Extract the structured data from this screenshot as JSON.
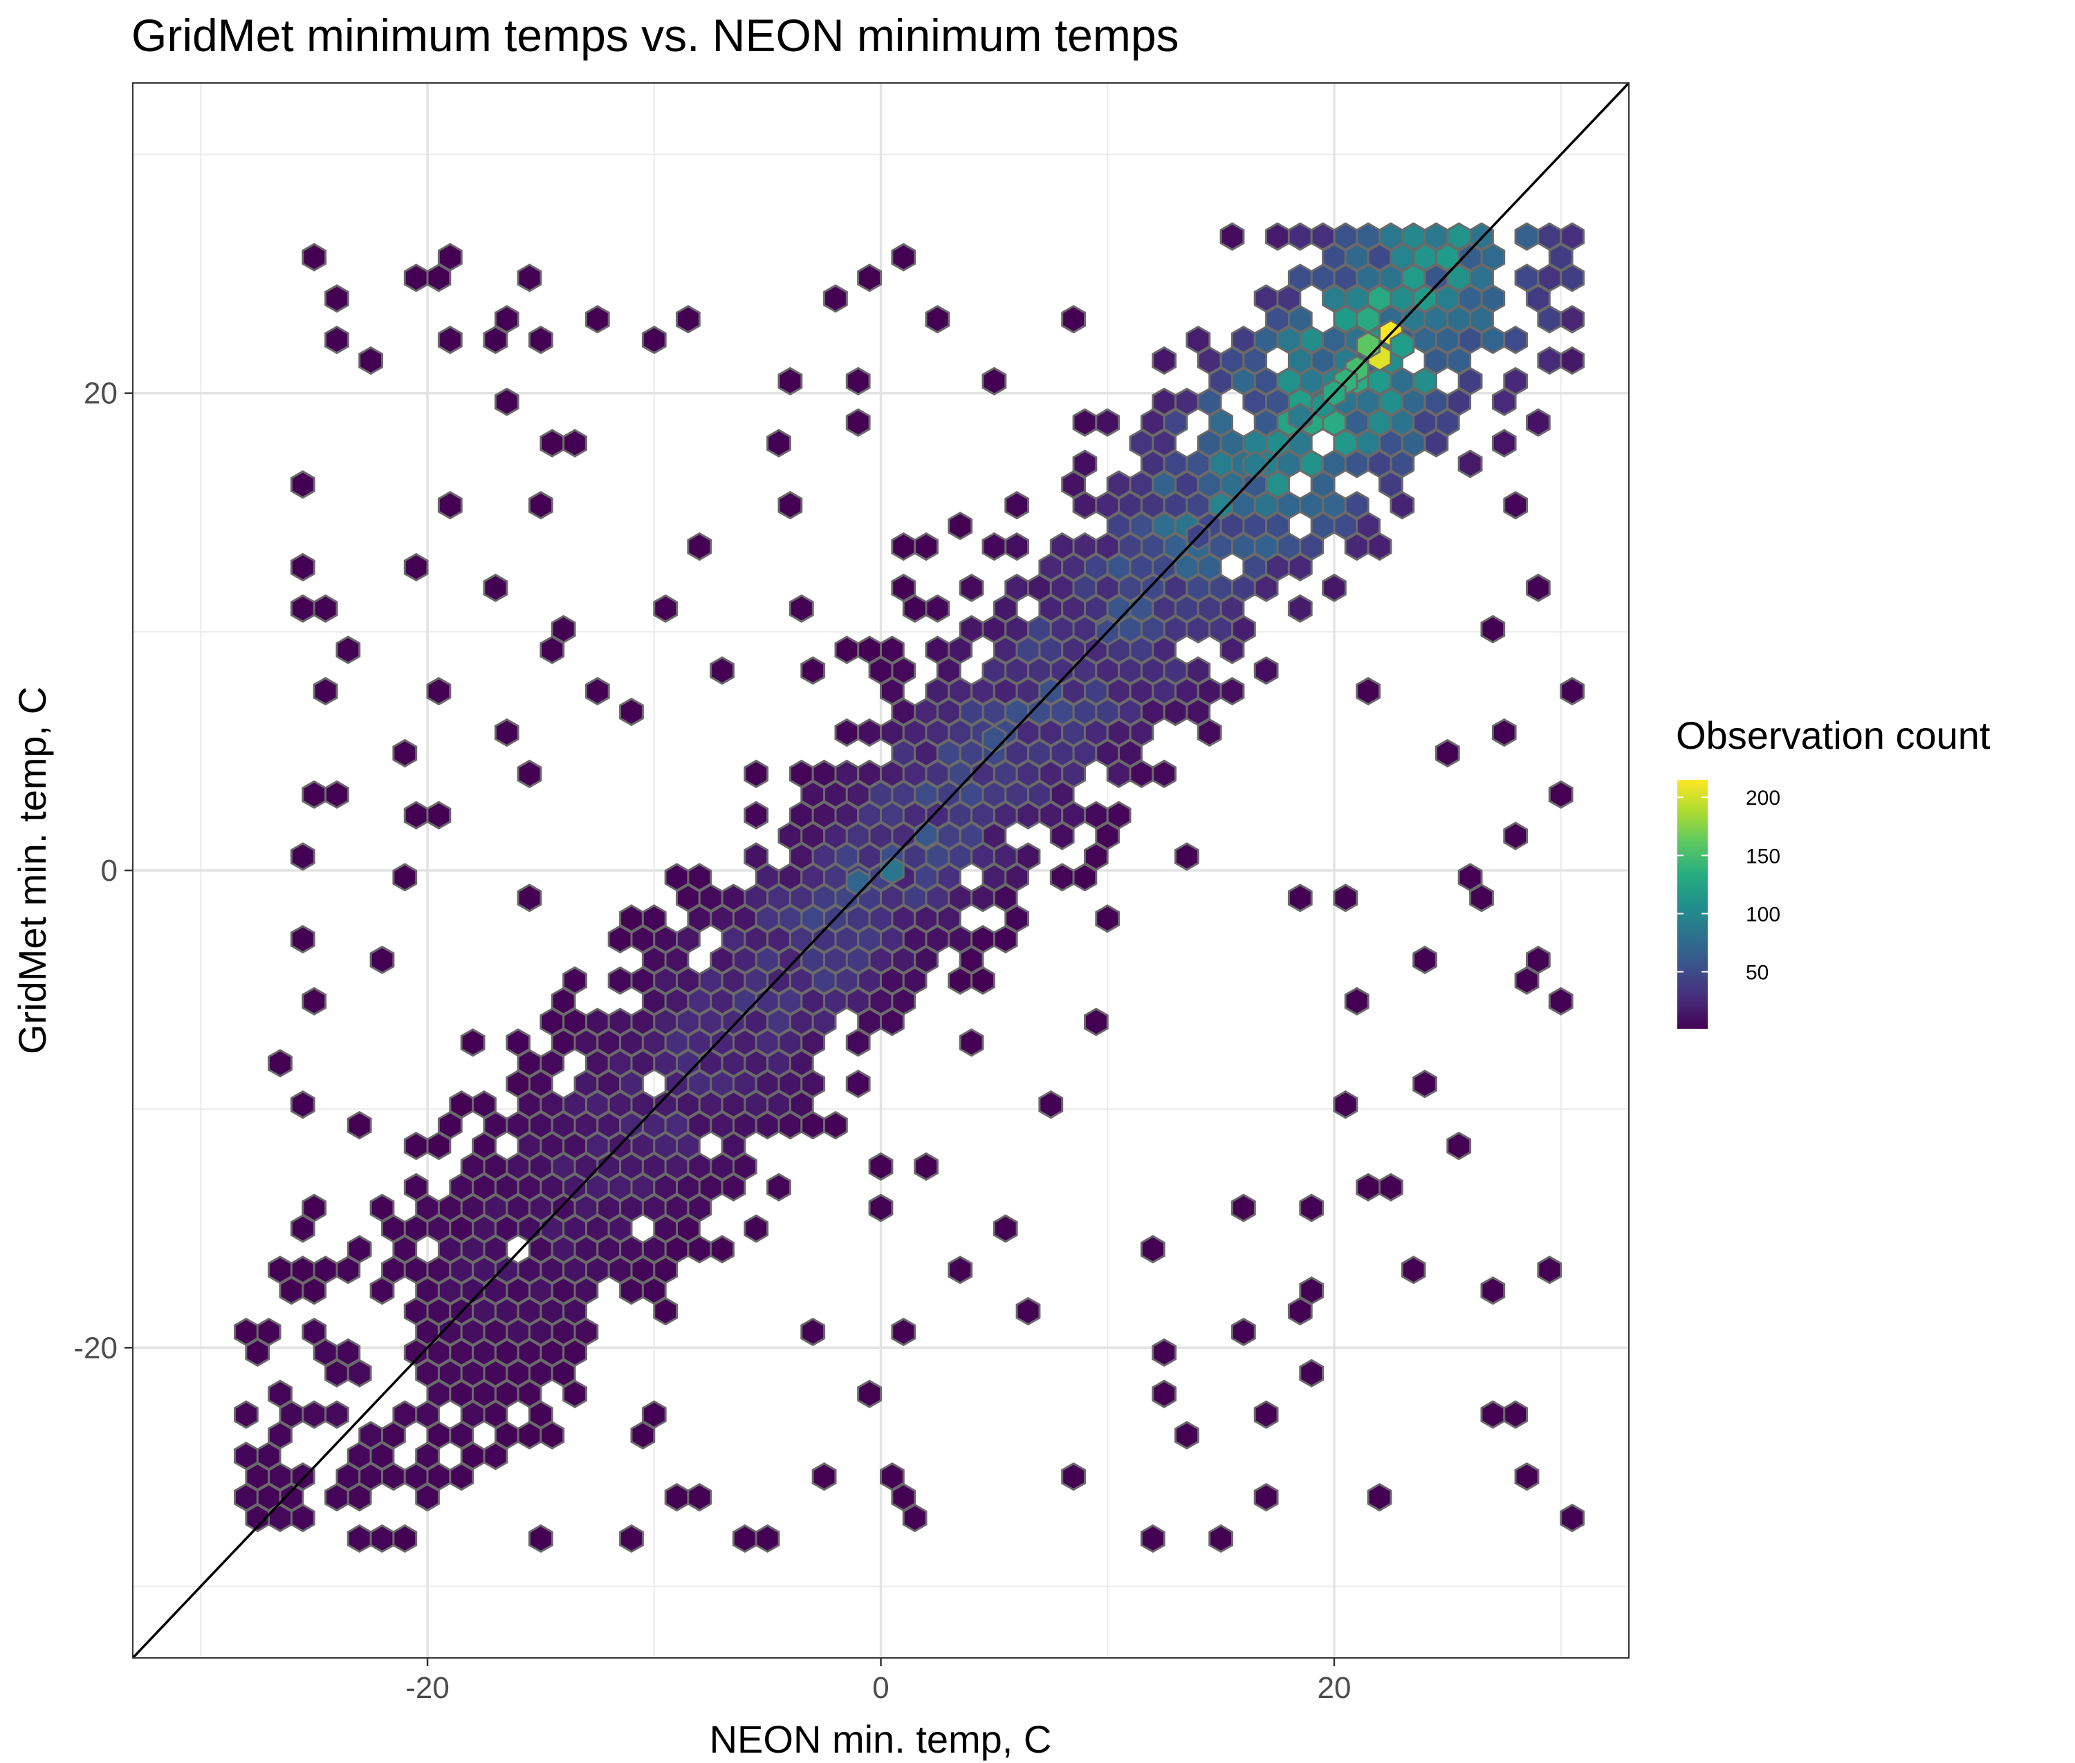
{
  "chart_data": {
    "type": "heatmap",
    "subtype": "hexbin",
    "title": "GridMet minimum temps vs. NEON minimum temps",
    "xlabel": "NEON min. temp, C",
    "ylabel": "GridMet min. temp, C",
    "xlim": [
      -33,
      33
    ],
    "ylim": [
      -33,
      33
    ],
    "x_ticks": [
      -20,
      0,
      20
    ],
    "y_ticks": [
      -20,
      0,
      20
    ],
    "x_tick_labels": [
      "-20",
      "0",
      "20"
    ],
    "y_tick_labels": [
      "-20",
      "0",
      "20"
    ],
    "grid": true,
    "reference_line": {
      "type": "identity",
      "slope": 1,
      "intercept": 0,
      "color": "#000000"
    },
    "legend": {
      "title": "Observation count",
      "position": "right",
      "colormap": "viridis",
      "range": [
        1,
        215
      ],
      "ticks": [
        50,
        100,
        150,
        200
      ],
      "tick_labels": [
        "50",
        "100",
        "150",
        "200"
      ]
    },
    "hex_bins": [
      {
        "x": 22.5,
        "y": 22.5,
        "count": 215
      },
      {
        "x": 22.0,
        "y": 21.5,
        "count": 205
      },
      {
        "x": 21.5,
        "y": 22.0,
        "count": 160
      },
      {
        "x": 21.0,
        "y": 21.0,
        "count": 150
      },
      {
        "x": 20.5,
        "y": 20.5,
        "count": 140
      },
      {
        "x": 23.0,
        "y": 22.0,
        "count": 120
      },
      {
        "x": 19.5,
        "y": 19.5,
        "count": 110
      },
      {
        "x": 20.0,
        "y": 20.0,
        "count": 130
      },
      {
        "x": 18.5,
        "y": 19.0,
        "count": 90
      },
      {
        "x": 16.5,
        "y": 17.0,
        "count": 90
      },
      {
        "x": 0.5,
        "y": 0.0,
        "count": 85
      },
      {
        "x": -1.0,
        "y": -0.5,
        "count": 70
      },
      {
        "x": 2.0,
        "y": 1.5,
        "count": 60
      },
      {
        "x": 5.0,
        "y": 5.5,
        "count": 55
      },
      {
        "x": 10.0,
        "y": 10.0,
        "count": 50
      },
      {
        "x": 14.0,
        "y": 14.0,
        "count": 45
      }
    ]
  }
}
